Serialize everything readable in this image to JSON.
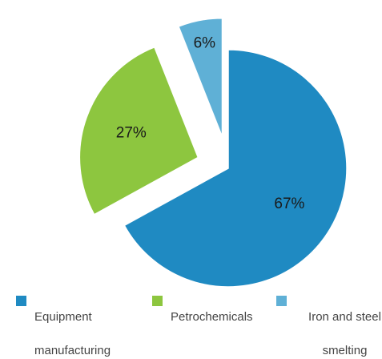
{
  "chart_data": {
    "type": "pie",
    "title": "",
    "categories": [
      "Equipment manufacturing",
      "Petrochemicals",
      "Iron and steel smelting"
    ],
    "values": [
      67,
      27,
      6
    ],
    "data_labels": [
      "67%",
      "27%",
      "6%"
    ],
    "colors": [
      "#1f8ac2",
      "#8dc63f",
      "#5fb0d6"
    ],
    "exploded": [
      false,
      true,
      true
    ],
    "legend_position": "bottom",
    "legend": [
      {
        "label_line1": "Equipment",
        "label_line2": "manufacturing"
      },
      {
        "label_line1": "Petrochemicals",
        "label_line2": ""
      },
      {
        "label_line1": "Iron and steel",
        "label_line2": "smelting"
      }
    ]
  }
}
